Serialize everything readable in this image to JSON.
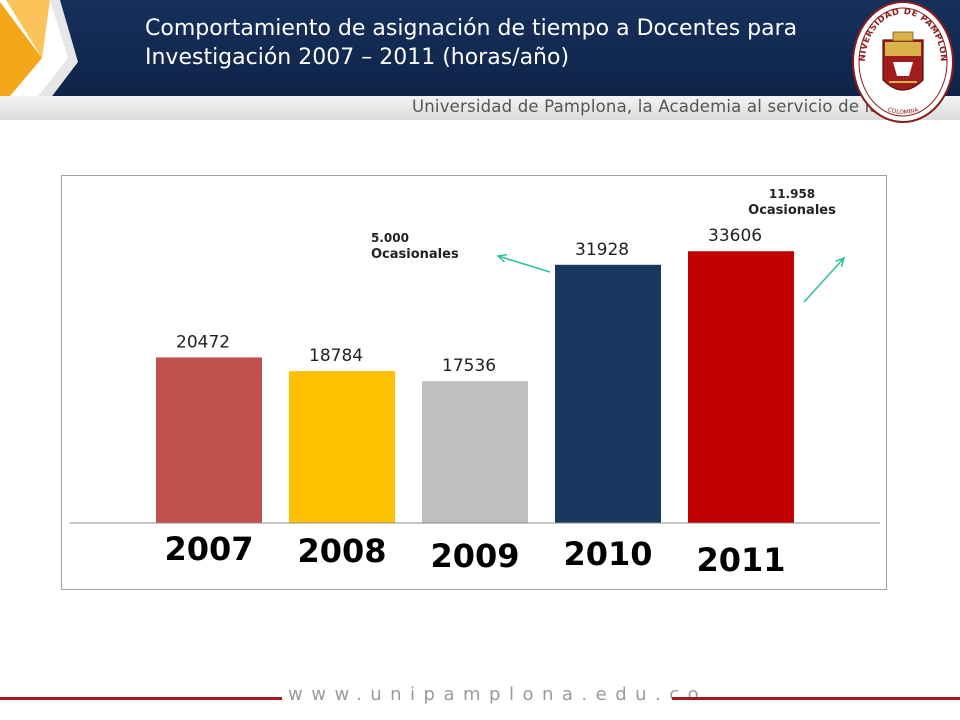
{
  "header": {
    "title_line1": "Comportamiento de asignación de tiempo a Docentes para",
    "title_line2": "Investigación 2007 – 2011 (horas/año)",
    "subtitle": "Universidad de Pamplona, la Academia al servicio de la Vida",
    "seal_top_text": "UNIVERSIDAD DE PAMPLONA",
    "seal_bottom_text": "COLOMBIA"
  },
  "colors": {
    "header_bg": "#16305c",
    "accent_orange": "#f5a71c",
    "footer_line": "#a11d1d"
  },
  "chart_data": {
    "type": "bar",
    "categories": [
      "2007",
      "2008",
      "2009",
      "2010",
      "2011"
    ],
    "values": [
      20472,
      18784,
      17536,
      31928,
      33606
    ],
    "value_labels": [
      "20472",
      "18784",
      "17536",
      "31928",
      "33606"
    ],
    "colors": [
      "#c0504d",
      "#ffc000",
      "#bfbfbf",
      "#17375e",
      "#c00000"
    ],
    "ylim": [
      0,
      34500
    ],
    "grid": false,
    "legend": "none",
    "annotations": [
      {
        "line1": "5.000",
        "line2": "Ocasionales",
        "category": "2010"
      },
      {
        "line1": "11.958",
        "line2": "Ocasionales",
        "category": "2011"
      }
    ]
  },
  "footer": {
    "url": "www.unipamplona.edu.co"
  }
}
